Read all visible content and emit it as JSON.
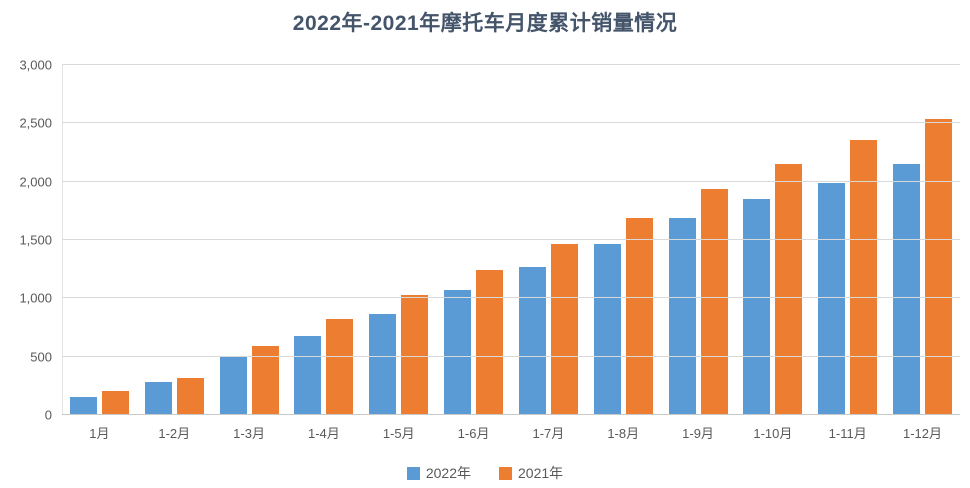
{
  "chart_data": {
    "type": "bar",
    "title": "2022年-2021年摩托车月度累计销量情况",
    "categories": [
      "1月",
      "1-2月",
      "1-3月",
      "1-4月",
      "1-5月",
      "1-6月",
      "1-7月",
      "1-8月",
      "1-9月",
      "1-10月",
      "1-11月",
      "1-12月"
    ],
    "series": [
      {
        "name": "2022年",
        "color": "#5B9BD5",
        "values": [
          155,
          280,
          500,
          680,
          870,
          1070,
          1270,
          1470,
          1685,
          1850,
          1985,
          2155
        ]
      },
      {
        "name": "2021年",
        "color": "#ED7D31",
        "values": [
          210,
          320,
          590,
          825,
          1030,
          1245,
          1470,
          1690,
          1940,
          2155,
          2360,
          2535
        ]
      }
    ],
    "xlabel": "",
    "ylabel": "",
    "ylim": [
      0,
      3000
    ],
    "y_tick_step": 500,
    "y_tick_labels": [
      "0",
      "500",
      "1,000",
      "1,500",
      "2,000",
      "2,500",
      "3,000"
    ],
    "grid": true,
    "legend_position": "bottom",
    "colors": {
      "title_text": "#44546A",
      "axis_text": "#595959",
      "gridline": "#D9D9D9",
      "background": "#FFFFFF"
    }
  }
}
